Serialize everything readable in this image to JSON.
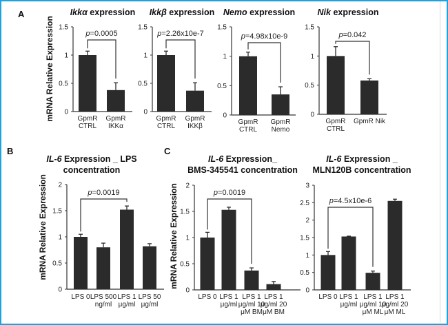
{
  "colors": {
    "bar": "#2b2b2b",
    "axis": "#333333",
    "frame": "#1aa3e0"
  },
  "panel_labels": [
    "A",
    "B",
    "C"
  ],
  "ylabel": "mRNA Relative Expression",
  "chart_data": [
    {
      "type": "bar",
      "panel": "A",
      "title_italic": "Ikkα",
      "title_rest": " expression",
      "ylabel": "mRNA Relative Expression",
      "ylim": [
        0,
        1.5
      ],
      "yticks": [
        "0",
        "0.5",
        "1",
        "1.5"
      ],
      "ytick_values": [
        0,
        0.5,
        1,
        1.5
      ],
      "categories": [
        [
          "GpmR",
          "CTRL"
        ],
        [
          "GpmR",
          "IKKα"
        ]
      ],
      "values": [
        1.0,
        0.38
      ],
      "errors": [
        0.07,
        0.13
      ],
      "comparison": {
        "between": [
          0,
          1
        ],
        "p_label": "p",
        "p_value": "=0.0005"
      }
    },
    {
      "type": "bar",
      "panel": "A",
      "title_italic": "Ikkβ",
      "title_rest": " expression",
      "ylabel": "",
      "ylim": [
        0,
        1.5
      ],
      "yticks": [
        "0",
        "0.5",
        "1",
        "1.5"
      ],
      "ytick_values": [
        0,
        0.5,
        1,
        1.5
      ],
      "categories": [
        [
          "GpmR",
          "CTRL"
        ],
        [
          "GpmR",
          "IKKβ"
        ]
      ],
      "values": [
        1.0,
        0.37
      ],
      "errors": [
        0.07,
        0.14
      ],
      "comparison": {
        "between": [
          0,
          1
        ],
        "p_label": "p",
        "p_value": "=2.26x10e-7"
      }
    },
    {
      "type": "bar",
      "panel": "A",
      "title_italic": "Nemo",
      "title_rest": " expression",
      "ylabel": "",
      "ylim": [
        0,
        1.5
      ],
      "yticks": [
        "0",
        "0.5",
        "1",
        "1.5"
      ],
      "ytick_values": [
        0,
        0.5,
        1,
        1.5
      ],
      "categories": [
        [
          "GpmR",
          "CTRL"
        ],
        [
          "GpmR",
          "Nemo"
        ]
      ],
      "values": [
        1.0,
        0.35
      ],
      "errors": [
        0.07,
        0.13
      ],
      "comparison": {
        "between": [
          0,
          1
        ],
        "p_label": "p",
        "p_value": "=4.98x10e-9"
      }
    },
    {
      "type": "bar",
      "panel": "A",
      "title_italic": "Nik",
      "title_rest": " expression",
      "ylabel": "",
      "ylim": [
        0,
        1.5
      ],
      "yticks": [
        "0",
        "0.5",
        "1",
        "1.5"
      ],
      "ytick_values": [
        0,
        0.5,
        1,
        1.5
      ],
      "categories": [
        [
          "GpmR",
          "CTRL"
        ],
        [
          "GpmR Nik"
        ]
      ],
      "values": [
        1.0,
        0.58
      ],
      "errors": [
        0.16,
        0.03
      ],
      "comparison": {
        "between": [
          0,
          1
        ],
        "p_label": "p",
        "p_value": "=0.042"
      }
    },
    {
      "type": "bar",
      "panel": "B",
      "title_italic": "IL-6",
      "title_rest": " Expression _ LPS",
      "title_line2": "concentration",
      "ylabel": "mRNA Relative Expression",
      "ylim": [
        0,
        2
      ],
      "yticks": [
        "0",
        "0.5",
        "1",
        "1.5",
        "2"
      ],
      "ytick_values": [
        0,
        0.5,
        1,
        1.5,
        2
      ],
      "categories": [
        [
          "LPS 0"
        ],
        [
          "LPS 500",
          "ng/ml"
        ],
        [
          "LPS 1",
          "μg/ml"
        ],
        [
          "LPS 50",
          "μg/ml"
        ]
      ],
      "values": [
        1.0,
        0.8,
        1.52,
        0.82
      ],
      "errors": [
        0.05,
        0.08,
        0.07,
        0.05
      ],
      "comparison": {
        "between": [
          0,
          2
        ],
        "p_label": "p",
        "p_value": "=0.0019"
      }
    },
    {
      "type": "bar",
      "panel": "C",
      "title_italic": "IL-6",
      "title_rest": " Expression_",
      "title_line2": "BMS-345541  concentration",
      "ylabel": "mRNA Relative Expression",
      "ylim": [
        0,
        2
      ],
      "yticks": [
        "0",
        "0.5",
        "1",
        "1.5",
        "2"
      ],
      "ytick_values": [
        0,
        0.5,
        1,
        1.5,
        2
      ],
      "categories": [
        [
          "LPS 0"
        ],
        [
          "LPS 1",
          "μg/ml"
        ],
        [
          "LPS 1",
          "μg/ml 10",
          "μM BM"
        ],
        [
          "LPS 1",
          "μg/ml 20",
          "μM BM"
        ]
      ],
      "values": [
        1.0,
        1.53,
        0.37,
        0.11
      ],
      "errors": [
        0.1,
        0.05,
        0.05,
        0.05
      ],
      "comparison": {
        "between": [
          0,
          2
        ],
        "p_label": "p",
        "p_value": "=0.0019"
      }
    },
    {
      "type": "bar",
      "panel": "C",
      "title_italic": "IL-6",
      "title_rest": " Expression _",
      "title_line2": "MLN120B concentration",
      "ylabel": "",
      "ylim": [
        0,
        3
      ],
      "yticks": [
        "0",
        "0.5",
        "1",
        "1.5",
        "2",
        "2.5",
        "3"
      ],
      "ytick_values": [
        0,
        0.5,
        1,
        1.5,
        2,
        2.5,
        3
      ],
      "categories": [
        [
          "LPS 0"
        ],
        [
          "LPS 1",
          "μg/ml"
        ],
        [
          "LPS 1",
          "μg/ml 10",
          "μM ML"
        ],
        [
          "LPS 1",
          "μg/ml 20",
          "μM ML"
        ]
      ],
      "values": [
        1.0,
        1.53,
        0.49,
        2.55
      ],
      "errors": [
        0.1,
        0.01,
        0.05,
        0.05
      ],
      "comparison": {
        "between": [
          0,
          2
        ],
        "p_label": "p",
        "p_value": "=4.5x10e-6"
      }
    }
  ]
}
